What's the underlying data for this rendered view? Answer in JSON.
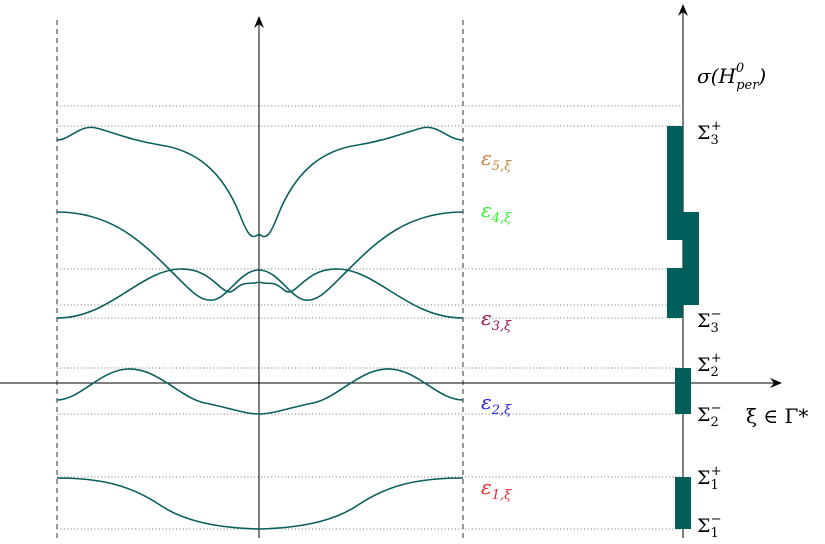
{
  "colors": {
    "curve": "#0b5f5c",
    "band": "#005f5a",
    "eps1": "#e8262a",
    "eps2": "#2222dd",
    "eps3": "#a0124e",
    "eps4": "#33ee33",
    "eps5": "#c8803a"
  },
  "labels": {
    "eps1": {
      "base": "ε",
      "sub": "1,ξ"
    },
    "eps2": {
      "base": "ε",
      "sub": "2,ξ"
    },
    "eps3": {
      "base": "ε",
      "sub": "3,ξ"
    },
    "eps4": {
      "base": "ε",
      "sub": "4,ξ"
    },
    "eps5": {
      "base": "ε",
      "sub": "5,ξ"
    },
    "xaxis": "ξ ∈ Γ*",
    "yaxis": {
      "main": "σ(H",
      "sup": "0",
      "sub": "per",
      "close": ")"
    }
  },
  "sigma": [
    {
      "id": "s3p",
      "base": "Σ",
      "sub": "3",
      "sup": "+"
    },
    {
      "id": "s3m",
      "base": "Σ",
      "sub": "3",
      "sup": "−"
    },
    {
      "id": "s2p",
      "base": "Σ",
      "sub": "2",
      "sup": "+"
    },
    {
      "id": "s2m",
      "base": "Σ",
      "sub": "2",
      "sup": "−"
    },
    {
      "id": "s1p",
      "base": "Σ",
      "sub": "1",
      "sup": "+"
    },
    {
      "id": "s1m",
      "base": "Σ",
      "sub": "1",
      "sup": "−"
    }
  ]
}
